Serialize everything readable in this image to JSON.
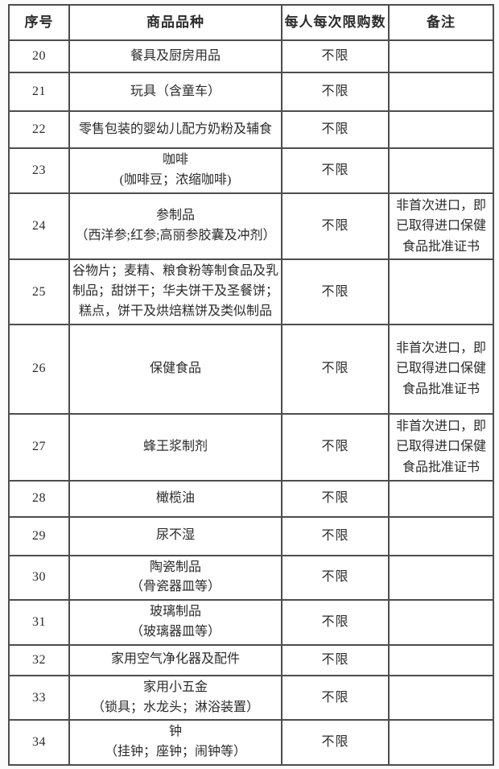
{
  "page": {
    "background_color": "#fbfbfb",
    "text_color": "#2b2b2b",
    "border_color": "#4d4d4d"
  },
  "table": {
    "columns": [
      "序号",
      "商品品种",
      "每人每次限购数",
      "备注"
    ],
    "rows": [
      {
        "id": "20",
        "product": "餐具及厨房用品",
        "limit": "不限",
        "remark": ""
      },
      {
        "id": "21",
        "product": "玩具（含童车）",
        "limit": "不限",
        "remark": ""
      },
      {
        "id": "22",
        "product": "零售包装的婴幼儿配方奶粉及辅食",
        "limit": "不限",
        "remark": ""
      },
      {
        "id": "23",
        "product": "咖啡",
        "product_sub": "(咖啡豆；浓缩咖啡)",
        "limit": "不限",
        "remark": ""
      },
      {
        "id": "24",
        "product": "参制品",
        "product_sub": "（西洋参;红参;高丽参胶囊及冲剂）",
        "limit": "不限",
        "remark": "非首次进口，即已取得进口保健食品批准证书"
      },
      {
        "id": "25",
        "product": "谷物片；麦精、粮食粉等制食品及乳制品；甜饼干；华夫饼干及圣餐饼；糕点，饼干及烘焙糕饼及类似制品",
        "limit": "不限",
        "remark": ""
      },
      {
        "id": "26",
        "product": "保健食品",
        "limit": "不限",
        "remark": "非首次进口，即已取得进口保健食品批准证书"
      },
      {
        "id": "27",
        "product": "蜂王浆制剂",
        "limit": "不限",
        "remark": "非首次进口，即已取得进口保健食品批准证书"
      },
      {
        "id": "28",
        "product": "橄榄油",
        "limit": "不限",
        "remark": ""
      },
      {
        "id": "29",
        "product": "尿不湿",
        "limit": "不限",
        "remark": ""
      },
      {
        "id": "30",
        "product": "陶瓷制品",
        "product_sub": "（骨瓷器皿等）",
        "limit": "不限",
        "remark": ""
      },
      {
        "id": "31",
        "product": "玻璃制品",
        "product_sub": "（玻璃器皿等）",
        "limit": "不限",
        "remark": ""
      },
      {
        "id": "32",
        "product": "家用空气净化器及配件",
        "limit": "不限",
        "remark": ""
      },
      {
        "id": "33",
        "product": "家用小五金",
        "product_sub": "（锁具；水龙头；淋浴装置）",
        "limit": "不限",
        "remark": ""
      },
      {
        "id": "34",
        "product": "钟",
        "product_sub": "（挂钟；座钟；闹钟等）",
        "limit": "不限",
        "remark": ""
      }
    ]
  }
}
